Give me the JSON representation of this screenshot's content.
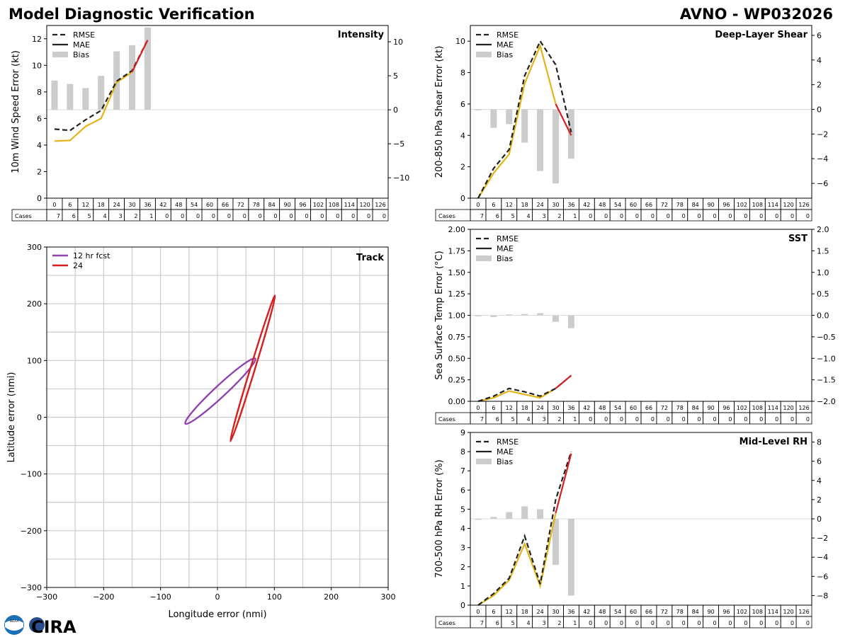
{
  "page": {
    "title_left": "Model Diagnostic Verification",
    "title_right": "AVNO - WP032026",
    "cases_label": "Cases",
    "logo_text": "CIRA",
    "logo_small": "NOAA"
  },
  "colors": {
    "rmse": "#222222",
    "mae": "#e3b417",
    "bias": "#cccccc",
    "last": "#d62020",
    "grid": "#dddddd",
    "track12": "#8e44ad",
    "track24": "#d62020"
  },
  "forecast_hours": [
    "0",
    "6",
    "12",
    "18",
    "24",
    "30",
    "36",
    "42",
    "48",
    "54",
    "60",
    "66",
    "72",
    "78",
    "84",
    "90",
    "96",
    "102",
    "108",
    "114",
    "120",
    "126"
  ],
  "cases": [
    7,
    6,
    5,
    4,
    3,
    2,
    1,
    0,
    0,
    0,
    0,
    0,
    0,
    0,
    0,
    0,
    0,
    0,
    0,
    0,
    0,
    0
  ],
  "legend": {
    "rmse": "RMSE",
    "mae": "MAE",
    "bias": "Bias"
  },
  "chart_data": [
    {
      "id": "intensity",
      "type": "line",
      "title": "Intensity",
      "ylabel": "10m Wind Speed Error (kt)",
      "x": [
        0,
        6,
        12,
        18,
        24,
        30,
        36
      ],
      "ylim": [
        0,
        13
      ],
      "yticks": [
        "0",
        "2",
        "4",
        "6",
        "8",
        "10",
        "12"
      ],
      "y2lim": [
        -13,
        12.4
      ],
      "y2ticks": [
        "10",
        "5",
        "0",
        "−5",
        "−10"
      ],
      "series": [
        {
          "name": "RMSE",
          "values": [
            5.2,
            5.1,
            5.9,
            6.6,
            8.8,
            9.6,
            11.9
          ]
        },
        {
          "name": "MAE",
          "values": [
            4.3,
            4.35,
            5.4,
            6.0,
            8.7,
            9.5,
            11.9
          ]
        },
        {
          "name": "Bias",
          "values": [
            4.3,
            3.8,
            3.2,
            5.0,
            8.6,
            9.5,
            12.1
          ]
        }
      ]
    },
    {
      "id": "shear",
      "type": "line",
      "title": "Deep-Layer Shear",
      "ylabel": "200-850 hPa Shear Error (kt)",
      "x": [
        0,
        6,
        12,
        18,
        24,
        30,
        36
      ],
      "ylim": [
        0,
        11
      ],
      "yticks": [
        "0",
        "2",
        "4",
        "6",
        "8",
        "10"
      ],
      "y2lim": [
        -7.2,
        6.8
      ],
      "y2ticks": [
        "6",
        "4",
        "2",
        "0",
        "−2",
        "−4",
        "−6"
      ],
      "series": [
        {
          "name": "RMSE",
          "values": [
            0,
            1.9,
            3.1,
            7.8,
            10.0,
            8.5,
            4.2
          ]
        },
        {
          "name": "MAE",
          "values": [
            0,
            1.6,
            2.8,
            7.3,
            9.7,
            6.0,
            4.0
          ]
        },
        {
          "name": "Bias",
          "values": [
            0,
            -1.5,
            -1.2,
            -2.7,
            -5.0,
            -6.0,
            -4.0
          ]
        }
      ]
    },
    {
      "id": "sst",
      "type": "line",
      "title": "SST",
      "ylabel": "Sea Surface Temp Error (°C)",
      "x": [
        0,
        6,
        12,
        18,
        24,
        30,
        36
      ],
      "ylim": [
        0,
        2.0
      ],
      "yticks": [
        "0.00",
        "0.25",
        "0.50",
        "0.75",
        "1.00",
        "1.25",
        "1.50",
        "1.75",
        "2.00"
      ],
      "y2lim": [
        -2.0,
        2.0
      ],
      "y2ticks": [
        "2.0",
        "1.5",
        "1.0",
        "0.5",
        "0.0",
        "−0.5",
        "−1.0",
        "−1.5",
        "−2.0"
      ],
      "series": [
        {
          "name": "RMSE",
          "values": [
            0,
            0.06,
            0.15,
            0.11,
            0.06,
            0.15,
            0.3
          ]
        },
        {
          "name": "MAE",
          "values": [
            0,
            0.04,
            0.12,
            0.08,
            0.04,
            0.15,
            0.3
          ]
        },
        {
          "name": "Bias",
          "values": [
            0,
            -0.04,
            0.02,
            0.03,
            0.05,
            -0.15,
            -0.3
          ]
        }
      ]
    },
    {
      "id": "rh",
      "type": "line",
      "title": "Mid-Level RH",
      "ylabel": "700-500 hPa RH Error (%)",
      "x": [
        0,
        6,
        12,
        18,
        24,
        30,
        36
      ],
      "ylim": [
        0,
        9
      ],
      "yticks": [
        "0",
        "1",
        "2",
        "3",
        "4",
        "5",
        "6",
        "7",
        "8",
        "9"
      ],
      "y2lim": [
        -9,
        9
      ],
      "y2ticks": [
        "8",
        "6",
        "4",
        "2",
        "0",
        "−2",
        "−4",
        "−6",
        "−8"
      ],
      "series": [
        {
          "name": "RMSE",
          "values": [
            0,
            0.6,
            1.4,
            3.6,
            1.1,
            5.5,
            8.0
          ]
        },
        {
          "name": "MAE",
          "values": [
            0,
            0.5,
            1.3,
            3.2,
            1.0,
            4.8,
            7.9
          ]
        },
        {
          "name": "Bias",
          "values": [
            0,
            0.2,
            0.7,
            1.3,
            1.0,
            -4.8,
            -8.0
          ]
        }
      ]
    },
    {
      "id": "track",
      "type": "scatter",
      "title": "Track",
      "xlabel": "Longitude error (nmi)",
      "ylabel": "Latitude error (nmi)",
      "xlim": [
        -300,
        300
      ],
      "ylim": [
        -300,
        300
      ],
      "xticks": [
        "−300",
        "−200",
        "−100",
        "0",
        "100",
        "200",
        "300"
      ],
      "yticks": [
        "300",
        "200",
        "100",
        "0",
        "−100",
        "−200",
        "−300"
      ],
      "legend": [
        "12 hr fcst",
        "24"
      ],
      "series": [
        {
          "name": "12 hr fcst",
          "ellipse": {
            "cx": 5,
            "cy": 46,
            "rx": 84,
            "ry": 10,
            "angle_deg": 43
          }
        },
        {
          "name": "24",
          "ellipse": {
            "cx": 62,
            "cy": 86,
            "rx": 134,
            "ry": 4,
            "angle_deg": 73
          }
        }
      ]
    }
  ]
}
